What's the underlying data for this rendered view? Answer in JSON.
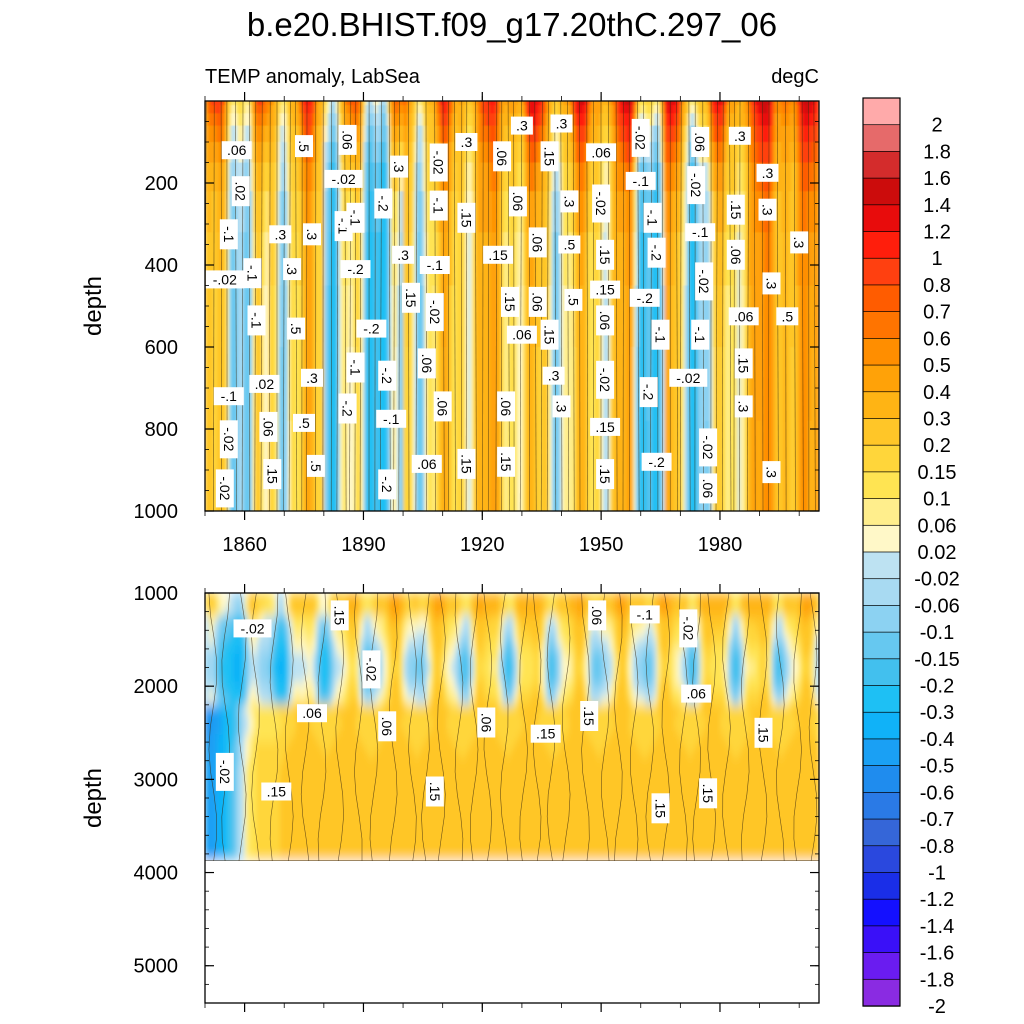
{
  "chart_data": {
    "type": "heatmap",
    "title": "b.e20.BHIST.f09_g17.20thC.297_06",
    "subtitle_left": "TEMP anomaly, LabSea",
    "subtitle_right": "degC",
    "ylabel": "depth",
    "xlim": [
      1850,
      2005
    ],
    "x_ticks": [
      1860,
      1890,
      1920,
      1950,
      1980
    ],
    "x_tick_labels": [
      "1860",
      "1890",
      "1920",
      "1950",
      "1980"
    ],
    "panels": [
      {
        "name": "upper",
        "ylim": [
          0,
          1000
        ],
        "y_ticks": [
          200,
          400,
          600,
          800,
          1000
        ],
        "y_tick_labels": [
          "200",
          "400",
          "600",
          "800",
          "1000"
        ],
        "contour_labels": [
          {
            "text": ".06",
            "x": 1858,
            "y": 120
          },
          {
            "text": ".02",
            "x": 1859,
            "y": 220
          },
          {
            "text": "-.1",
            "x": 1856,
            "y": 325
          },
          {
            "text": "-.02",
            "x": 1855,
            "y": 435
          },
          {
            "text": "-.1",
            "x": 1862,
            "y": 420
          },
          {
            "text": "-.1",
            "x": 1863,
            "y": 535
          },
          {
            "text": "-.1",
            "x": 1856,
            "y": 720
          },
          {
            "text": "-.02",
            "x": 1856,
            "y": 825
          },
          {
            "text": "-.02",
            "x": 1855,
            "y": 945
          },
          {
            "text": ".02",
            "x": 1865,
            "y": 690
          },
          {
            "text": ".06",
            "x": 1866,
            "y": 795
          },
          {
            "text": ".15",
            "x": 1867,
            "y": 910
          },
          {
            "text": ".3",
            "x": 1869,
            "y": 325
          },
          {
            "text": ".3",
            "x": 1872,
            "y": 410
          },
          {
            "text": ".5",
            "x": 1873,
            "y": 555
          },
          {
            "text": ".5",
            "x": 1875,
            "y": 785
          },
          {
            "text": ".5",
            "x": 1875,
            "y": 110
          },
          {
            "text": ".3",
            "x": 1877,
            "y": 325
          },
          {
            "text": ".3",
            "x": 1877,
            "y": 675
          },
          {
            "text": ".5",
            "x": 1878,
            "y": 890
          },
          {
            "text": ".06",
            "x": 1886,
            "y": 95
          },
          {
            "text": "-.02",
            "x": 1885,
            "y": 190
          },
          {
            "text": "-.1",
            "x": 1885,
            "y": 305
          },
          {
            "text": "-.1",
            "x": 1888,
            "y": 285
          },
          {
            "text": "-.2",
            "x": 1888,
            "y": 410
          },
          {
            "text": "-.1",
            "x": 1888,
            "y": 650
          },
          {
            "text": "-.2",
            "x": 1886,
            "y": 750
          },
          {
            "text": "-.2",
            "x": 1892,
            "y": 555
          },
          {
            "text": "-.2",
            "x": 1895,
            "y": 250
          },
          {
            "text": "-.2",
            "x": 1896,
            "y": 670
          },
          {
            "text": "-.1",
            "x": 1897,
            "y": 775
          },
          {
            "text": "-.2",
            "x": 1896,
            "y": 935
          },
          {
            "text": ".3",
            "x": 1899,
            "y": 160
          },
          {
            "text": ".3",
            "x": 1900,
            "y": 375
          },
          {
            "text": ".15",
            "x": 1902,
            "y": 480
          },
          {
            "text": ".06",
            "x": 1906,
            "y": 640
          },
          {
            "text": ".06",
            "x": 1906,
            "y": 885
          },
          {
            "text": "-.02",
            "x": 1909,
            "y": 150
          },
          {
            "text": "-.1",
            "x": 1909,
            "y": 255
          },
          {
            "text": "-.1",
            "x": 1908,
            "y": 400
          },
          {
            "text": "-.02",
            "x": 1908,
            "y": 515
          },
          {
            "text": ".06",
            "x": 1910,
            "y": 745
          },
          {
            "text": ".3",
            "x": 1916,
            "y": 100
          },
          {
            "text": ".15",
            "x": 1916,
            "y": 285
          },
          {
            "text": ".15",
            "x": 1916,
            "y": 885
          },
          {
            "text": ".3",
            "x": 1930,
            "y": 60
          },
          {
            "text": ".06",
            "x": 1925,
            "y": 135
          },
          {
            "text": ".06",
            "x": 1929,
            "y": 245
          },
          {
            "text": ".15",
            "x": 1924,
            "y": 375
          },
          {
            "text": ".15",
            "x": 1927,
            "y": 490
          },
          {
            "text": ".06",
            "x": 1934,
            "y": 490
          },
          {
            "text": ".06",
            "x": 1930,
            "y": 570
          },
          {
            "text": ".06",
            "x": 1926,
            "y": 745
          },
          {
            "text": ".15",
            "x": 1926,
            "y": 880
          },
          {
            "text": ".3",
            "x": 1940,
            "y": 55
          },
          {
            "text": ".15",
            "x": 1937,
            "y": 135
          },
          {
            "text": ".06",
            "x": 1934,
            "y": 345
          },
          {
            "text": ".5",
            "x": 1942,
            "y": 350
          },
          {
            "text": ".5",
            "x": 1943,
            "y": 485
          },
          {
            "text": ".15",
            "x": 1937,
            "y": 570
          },
          {
            "text": ".3",
            "x": 1938,
            "y": 670
          },
          {
            "text": ".3",
            "x": 1940,
            "y": 745
          },
          {
            "text": ".3",
            "x": 1942,
            "y": 245
          },
          {
            "text": ".06",
            "x": 1950,
            "y": 125
          },
          {
            "text": "-.02",
            "x": 1950,
            "y": 250
          },
          {
            "text": ".15",
            "x": 1951,
            "y": 375
          },
          {
            "text": ".15",
            "x": 1951,
            "y": 460
          },
          {
            "text": ".06",
            "x": 1951,
            "y": 535
          },
          {
            "text": "-.02",
            "x": 1951,
            "y": 680
          },
          {
            "text": ".15",
            "x": 1951,
            "y": 795
          },
          {
            "text": ".15",
            "x": 1951,
            "y": 910
          },
          {
            "text": "-.02",
            "x": 1960,
            "y": 90
          },
          {
            "text": "-.1",
            "x": 1960,
            "y": 195
          },
          {
            "text": "-.1",
            "x": 1963,
            "y": 285
          },
          {
            "text": "-.2",
            "x": 1964,
            "y": 370
          },
          {
            "text": "-.2",
            "x": 1961,
            "y": 480
          },
          {
            "text": "-.1",
            "x": 1965,
            "y": 570
          },
          {
            "text": "-.2",
            "x": 1962,
            "y": 710
          },
          {
            "text": "-.2",
            "x": 1964,
            "y": 880
          },
          {
            "text": ".06",
            "x": 1975,
            "y": 100
          },
          {
            "text": "-.02",
            "x": 1974,
            "y": 205
          },
          {
            "text": "-.1",
            "x": 1975,
            "y": 320
          },
          {
            "text": "-.02",
            "x": 1976,
            "y": 440
          },
          {
            "text": "-.1",
            "x": 1975,
            "y": 570
          },
          {
            "text": "-.02",
            "x": 1972,
            "y": 675
          },
          {
            "text": "-.02",
            "x": 1977,
            "y": 845
          },
          {
            "text": ".06",
            "x": 1977,
            "y": 945
          },
          {
            "text": ".3",
            "x": 1985,
            "y": 85
          },
          {
            "text": ".15",
            "x": 1984,
            "y": 265
          },
          {
            "text": ".06",
            "x": 1984,
            "y": 375
          },
          {
            "text": ".06",
            "x": 1986,
            "y": 525
          },
          {
            "text": ".15",
            "x": 1986,
            "y": 640
          },
          {
            "text": ".3",
            "x": 1986,
            "y": 745
          },
          {
            "text": ".3",
            "x": 1992,
            "y": 175
          },
          {
            "text": ".3",
            "x": 1992,
            "y": 265
          },
          {
            "text": ".3",
            "x": 1993,
            "y": 445
          },
          {
            "text": ".5",
            "x": 1997,
            "y": 525
          },
          {
            "text": ".3",
            "x": 2000,
            "y": 345
          },
          {
            "text": ".3",
            "x": 1993,
            "y": 905
          }
        ]
      },
      {
        "name": "lower",
        "ylim": [
          1000,
          5400
        ],
        "y_ticks": [
          1000,
          2000,
          3000,
          4000,
          5000
        ],
        "y_tick_labels": [
          "1000",
          "2000",
          "3000",
          "4000",
          "5000"
        ],
        "data_bottom": 3875,
        "contour_labels": [
          {
            "text": "-.02",
            "x": 1862,
            "y": 1380
          },
          {
            "text": ".15",
            "x": 1884,
            "y": 1240
          },
          {
            "text": "-.02",
            "x": 1892,
            "y": 1820
          },
          {
            "text": ".06",
            "x": 1877,
            "y": 2290
          },
          {
            "text": ".06",
            "x": 1896,
            "y": 2430
          },
          {
            "text": "-.02",
            "x": 1855,
            "y": 2920
          },
          {
            "text": ".15",
            "x": 1868,
            "y": 3130
          },
          {
            "text": ".15",
            "x": 1908,
            "y": 3130
          },
          {
            "text": ".06",
            "x": 1921,
            "y": 2390
          },
          {
            "text": ".15",
            "x": 1936,
            "y": 2510
          },
          {
            "text": ".15",
            "x": 1947,
            "y": 2320
          },
          {
            "text": ".06",
            "x": 1949,
            "y": 1240
          },
          {
            "text": "-.1",
            "x": 1961,
            "y": 1230
          },
          {
            "text": ".15",
            "x": 1965,
            "y": 3310
          },
          {
            "text": "-.02",
            "x": 1972,
            "y": 1380
          },
          {
            "text": ".06",
            "x": 1974,
            "y": 2080
          },
          {
            "text": ".15",
            "x": 1977,
            "y": 3150
          },
          {
            "text": ".15",
            "x": 1991,
            "y": 2500
          }
        ]
      }
    ],
    "colorbar": {
      "levels": [
        "-2",
        "-1.8",
        "-1.6",
        "-1.4",
        "-1.2",
        "-1",
        "-0.8",
        "-0.7",
        "-0.6",
        "-0.5",
        "-0.4",
        "-0.3",
        "-0.2",
        "-0.15",
        "-0.1",
        "-0.06",
        "-0.02",
        "0.02",
        "0.06",
        "0.1",
        "0.15",
        "0.2",
        "0.3",
        "0.4",
        "0.5",
        "0.6",
        "0.7",
        "0.8",
        "1",
        "1.2",
        "1.4",
        "1.6",
        "1.8",
        "2"
      ],
      "colors": [
        "#8a2be2",
        "#6a1cf0",
        "#3a10f8",
        "#1410ff",
        "#1a2ee8",
        "#2a48de",
        "#3566d8",
        "#2a7ae6",
        "#1f8cee",
        "#1aa0f4",
        "#10b2f8",
        "#1ec0f4",
        "#42c0ee",
        "#66c8f0",
        "#8cd2f2",
        "#a8daf2",
        "#bde2f2",
        "#fff8c8",
        "#ffee8c",
        "#ffe452",
        "#ffd63a",
        "#ffc628",
        "#ffb414",
        "#ffa208",
        "#ff8e00",
        "#ff7400",
        "#ff5c00",
        "#ff4010",
        "#ff1e0c",
        "#e80c0c",
        "#cc0c0c",
        "#d42c2c",
        "#e66a6a",
        "#ffaaaa"
      ]
    }
  }
}
